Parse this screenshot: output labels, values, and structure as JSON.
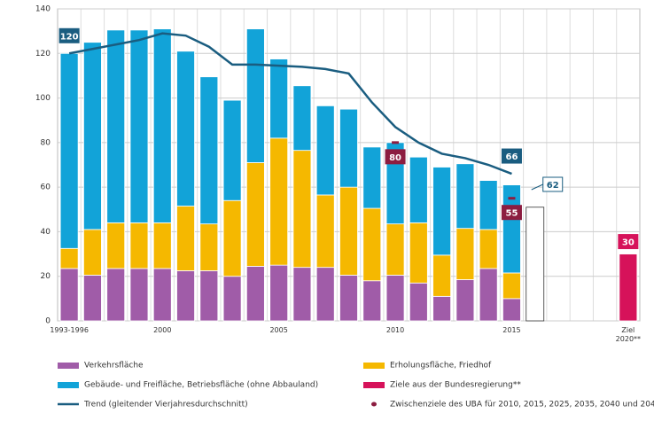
{
  "chart_data": {
    "type": "bar",
    "categories": [
      "1993-1996",
      null,
      null,
      null,
      "2000",
      null,
      null,
      null,
      null,
      "2005",
      null,
      null,
      null,
      null,
      "2010",
      null,
      null,
      null,
      null,
      "2015",
      null,
      null,
      null,
      null,
      "Ziel 2020**"
    ],
    "series": [
      {
        "name": "Verkehrsfläche",
        "type": "bar",
        "color": "#a05ca8",
        "values": [
          23.5,
          20.5,
          23.5,
          23.5,
          23.5,
          22.5,
          22.5,
          20,
          24.5,
          25,
          24,
          24,
          20.5,
          18,
          20.5,
          17,
          11,
          18.5,
          23.5,
          10,
          null,
          null,
          null,
          null,
          null
        ]
      },
      {
        "name": "Erholungsfläche, Friedhof",
        "type": "bar",
        "color": "#f5b800",
        "values": [
          9,
          20.5,
          20.5,
          20.5,
          20.5,
          29,
          21,
          34,
          46.5,
          57,
          52.5,
          32.5,
          39.5,
          32.5,
          23,
          27,
          18.5,
          23,
          17.5,
          11.5,
          null,
          null,
          null,
          null,
          null
        ]
      },
      {
        "name": "Gebäude- und Freifläche, Betriebsfläche (ohne Abbauland)",
        "type": "bar",
        "color": "#12a3d8",
        "values": [
          87.5,
          84,
          86.5,
          86.5,
          87,
          69.5,
          66,
          45,
          60,
          35.5,
          29,
          40,
          35,
          27.5,
          36.5,
          29.5,
          39.5,
          29,
          22,
          39.5,
          null,
          null,
          null,
          null,
          null
        ]
      },
      {
        "name": "Ziele aus der Bundesregierung**",
        "type": "bar",
        "color": "#d6125a",
        "values": [
          null,
          null,
          null,
          null,
          null,
          null,
          null,
          null,
          null,
          null,
          null,
          null,
          null,
          null,
          null,
          null,
          null,
          null,
          null,
          null,
          null,
          null,
          null,
          null,
          30
        ],
        "value_labels": [
          null,
          null,
          null,
          null,
          null,
          null,
          null,
          null,
          null,
          null,
          null,
          null,
          null,
          null,
          null,
          null,
          null,
          null,
          null,
          null,
          null,
          null,
          null,
          null,
          "30"
        ]
      },
      {
        "name": "Trend (gleitender Vierjahresdurchschnitt)",
        "type": "line",
        "color": "#1a5d80",
        "values": [
          120,
          122,
          124,
          126,
          129,
          128,
          123,
          115,
          115,
          114.5,
          114,
          113,
          111,
          98,
          87,
          80,
          75,
          73,
          70,
          66,
          null,
          null,
          null,
          null,
          null
        ],
        "value_labels": [
          "120",
          null,
          null,
          null,
          null,
          null,
          null,
          null,
          null,
          null,
          null,
          null,
          null,
          null,
          null,
          null,
          null,
          null,
          null,
          "66",
          null,
          null,
          null,
          null,
          null
        ]
      },
      {
        "name": "Zwischenziele des UBA für 2010, 2015, 2025, 2035, 2040 und 2045",
        "type": "marker",
        "color": "#8c1d40",
        "values": [
          null,
          null,
          null,
          null,
          null,
          null,
          null,
          null,
          null,
          null,
          null,
          null,
          null,
          null,
          80,
          null,
          null,
          null,
          null,
          55,
          null,
          null,
          null,
          null,
          null
        ],
        "value_labels": [
          null,
          null,
          null,
          null,
          null,
          null,
          null,
          null,
          null,
          null,
          null,
          null,
          null,
          null,
          "80",
          null,
          null,
          null,
          null,
          "55",
          null,
          null,
          null,
          null,
          null
        ]
      },
      {
        "type": "bar",
        "color": "#ffffff",
        "values": [
          null,
          null,
          null,
          null,
          null,
          null,
          null,
          null,
          null,
          null,
          null,
          null,
          null,
          null,
          null,
          null,
          null,
          null,
          null,
          null,
          51,
          null,
          null,
          null,
          null
        ]
      }
    ],
    "annotations": [
      {
        "text": "62"
      }
    ],
    "ylim": [
      0,
      140
    ],
    "yticks": [
      0,
      20,
      40,
      60,
      80,
      100,
      120,
      140
    ],
    "grid": true
  }
}
